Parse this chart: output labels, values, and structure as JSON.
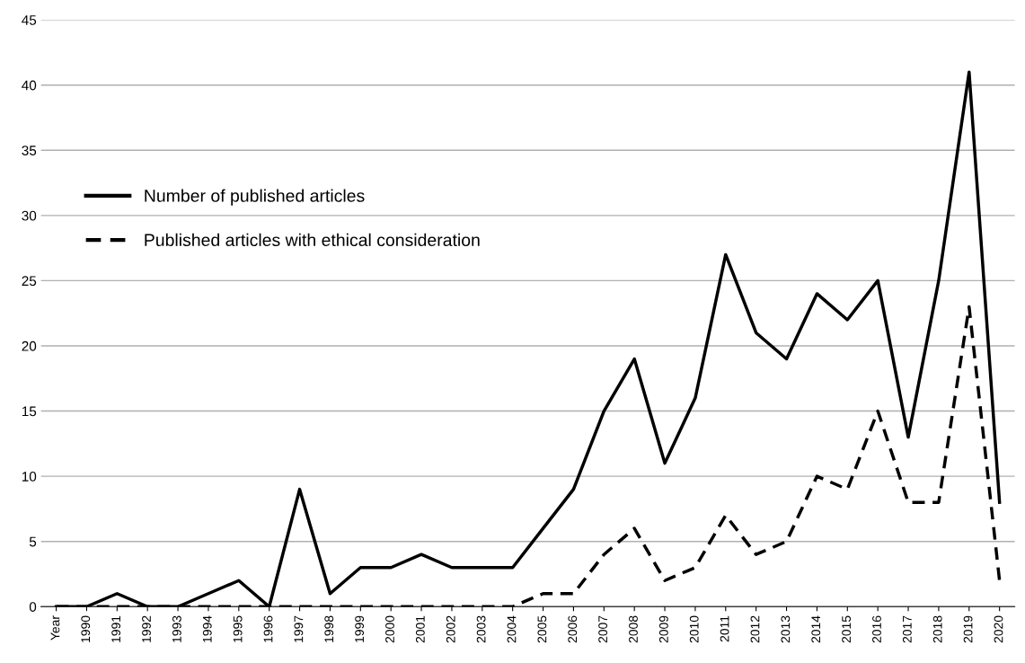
{
  "chart_data": {
    "type": "line",
    "categories": [
      "Year",
      "1990",
      "1991",
      "1992",
      "1993",
      "1994",
      "1995",
      "1996",
      "1997",
      "1998",
      "1999",
      "2000",
      "2001",
      "2002",
      "2003",
      "2004",
      "2005",
      "2006",
      "2007",
      "2008",
      "2009",
      "2010",
      "2011",
      "2012",
      "2013",
      "2014",
      "2015",
      "2016",
      "2017",
      "2018",
      "2019",
      "2020"
    ],
    "series": [
      {
        "name": "Number of published articles",
        "color": "#000000",
        "line_style": "solid",
        "values": [
          0,
          0,
          1,
          0,
          0,
          1,
          2,
          0,
          9,
          1,
          3,
          3,
          4,
          3,
          3,
          3,
          6,
          9,
          15,
          19,
          11,
          16,
          27,
          21,
          19,
          24,
          22,
          25,
          13,
          25,
          41,
          8
        ]
      },
      {
        "name": "Published articles with ethical consideration",
        "color": "#000000",
        "line_style": "dashed",
        "values": [
          0,
          0,
          0,
          0,
          0,
          0,
          0,
          0,
          0,
          0,
          0,
          0,
          0,
          0,
          0,
          0,
          1,
          1,
          4,
          6,
          2,
          3,
          7,
          4,
          5,
          10,
          9,
          15,
          8,
          8,
          23,
          2
        ]
      }
    ],
    "ylim": [
      0,
      45
    ],
    "yticks": [
      0,
      5,
      10,
      15,
      20,
      25,
      30,
      35,
      40,
      45
    ],
    "grid": "y",
    "legend": "left",
    "marker": "none"
  }
}
